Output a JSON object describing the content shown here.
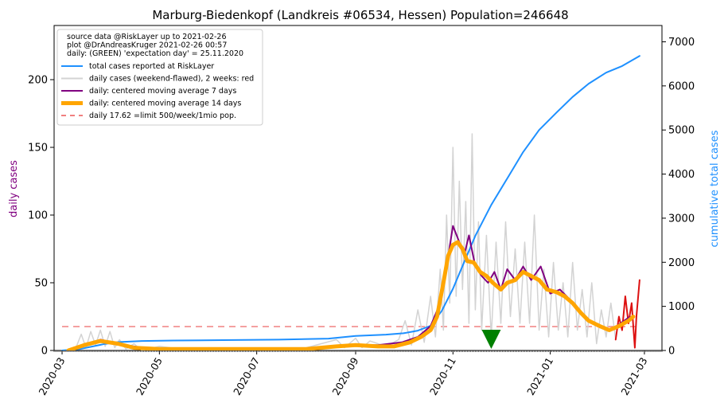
{
  "chart_data": {
    "type": "line",
    "title": "Marburg-Biedenkopf (Landkreis #06534, Hessen) Population=246648",
    "ylabel_left": "daily cases",
    "ylabel_right": "cumulative total cases",
    "ylim_left": [
      0,
      240
    ],
    "ylim_right": [
      0,
      7370
    ],
    "xlim": [
      "2020-02-25",
      "2021-03-12"
    ],
    "yticks_left": [
      0,
      50,
      100,
      150,
      200
    ],
    "yticks_right": [
      0,
      1000,
      2000,
      3000,
      4000,
      5000,
      6000,
      7000
    ],
    "xticks": [
      "2020-03",
      "2020-05",
      "2020-07",
      "2020-09",
      "2020-11",
      "2021-01",
      "2021-03"
    ],
    "colors": {
      "title": "#000000",
      "ylabel_left": "#800080",
      "ylabel_right": "#1e90ff",
      "total": "#1e90ff",
      "daily": "#d3d3d3",
      "daily_recent": "#dd1111",
      "ma7": "#800080",
      "ma14": "#ffa500",
      "limit": "#f08080",
      "expectation_marker": "#008000"
    },
    "legend": {
      "placement": "top-left",
      "header": [
        "source data @RiskLayer up to 2021-02-26",
        "plot @DrAndreasKruger 2021-02-26 00:57",
        "daily: (GREEN) 'expectation day' = 25.11.2020"
      ],
      "entries": [
        {
          "label": "total cases reported at RiskLayer",
          "color": "#1e90ff",
          "style": "solid"
        },
        {
          "label": "daily cases (weekend-flawed), 2 weeks: red",
          "color": "#d3d3d3",
          "style": "solid"
        },
        {
          "label": "daily: centered moving average 7 days",
          "color": "#800080",
          "style": "solid"
        },
        {
          "label": "daily: centered moving average 14 days",
          "color": "#ffa500",
          "style": "thick"
        },
        {
          "label": "daily 17.62 =limit 500/week/1mio pop.",
          "color": "#f08080",
          "style": "dashed"
        }
      ]
    },
    "limit_value": 17.62,
    "expectation_day": "2020-11-25",
    "series": [
      {
        "name": "total cases reported at RiskLayer",
        "axis": "right",
        "points": [
          [
            "2020-03-01",
            0
          ],
          [
            "2020-03-12",
            30
          ],
          [
            "2020-03-20",
            90
          ],
          [
            "2020-03-28",
            150
          ],
          [
            "2020-04-05",
            190
          ],
          [
            "2020-04-20",
            215
          ],
          [
            "2020-05-10",
            225
          ],
          [
            "2020-06-10",
            235
          ],
          [
            "2020-07-15",
            245
          ],
          [
            "2020-08-15",
            270
          ],
          [
            "2020-09-01",
            330
          ],
          [
            "2020-09-20",
            360
          ],
          [
            "2020-10-01",
            390
          ],
          [
            "2020-10-10",
            450
          ],
          [
            "2020-10-18",
            560
          ],
          [
            "2020-10-25",
            900
          ],
          [
            "2020-11-01",
            1400
          ],
          [
            "2020-11-08",
            2000
          ],
          [
            "2020-11-15",
            2600
          ],
          [
            "2020-11-25",
            3300
          ],
          [
            "2020-12-05",
            3900
          ],
          [
            "2020-12-15",
            4500
          ],
          [
            "2020-12-25",
            5000
          ],
          [
            "2021-01-05",
            5400
          ],
          [
            "2021-01-15",
            5750
          ],
          [
            "2021-01-25",
            6050
          ],
          [
            "2021-02-05",
            6300
          ],
          [
            "2021-02-15",
            6450
          ],
          [
            "2021-02-26",
            6680
          ]
        ]
      },
      {
        "name": "daily cases (weekend-flawed), 2 weeks: red",
        "axis": "left",
        "points": [
          [
            "2020-03-05",
            0
          ],
          [
            "2020-03-10",
            3
          ],
          [
            "2020-03-13",
            12
          ],
          [
            "2020-03-16",
            2
          ],
          [
            "2020-03-19",
            14
          ],
          [
            "2020-03-22",
            4
          ],
          [
            "2020-03-25",
            15
          ],
          [
            "2020-03-28",
            3
          ],
          [
            "2020-03-31",
            14
          ],
          [
            "2020-04-03",
            2
          ],
          [
            "2020-04-06",
            8
          ],
          [
            "2020-04-10",
            1
          ],
          [
            "2020-04-15",
            5
          ],
          [
            "2020-04-20",
            0
          ],
          [
            "2020-05-01",
            3
          ],
          [
            "2020-05-15",
            1
          ],
          [
            "2020-06-01",
            2
          ],
          [
            "2020-07-01",
            1
          ],
          [
            "2020-08-01",
            2
          ],
          [
            "2020-08-20",
            8
          ],
          [
            "2020-08-25",
            2
          ],
          [
            "2020-09-01",
            9
          ],
          [
            "2020-09-05",
            2
          ],
          [
            "2020-09-10",
            7
          ],
          [
            "2020-09-20",
            3
          ],
          [
            "2020-09-28",
            8
          ],
          [
            "2020-10-02",
            22
          ],
          [
            "2020-10-06",
            4
          ],
          [
            "2020-10-10",
            30
          ],
          [
            "2020-10-14",
            6
          ],
          [
            "2020-10-18",
            40
          ],
          [
            "2020-10-21",
            10
          ],
          [
            "2020-10-24",
            60
          ],
          [
            "2020-10-26",
            15
          ],
          [
            "2020-10-28",
            100
          ],
          [
            "2020-10-30",
            35
          ],
          [
            "2020-11-01",
            150
          ],
          [
            "2020-11-03",
            40
          ],
          [
            "2020-11-05",
            125
          ],
          [
            "2020-11-07",
            45
          ],
          [
            "2020-11-09",
            110
          ],
          [
            "2020-11-11",
            20
          ],
          [
            "2020-11-13",
            160
          ],
          [
            "2020-11-15",
            30
          ],
          [
            "2020-11-17",
            95
          ],
          [
            "2020-11-19",
            15
          ],
          [
            "2020-11-22",
            85
          ],
          [
            "2020-11-25",
            10
          ],
          [
            "2020-11-28",
            80
          ],
          [
            "2020-12-01",
            20
          ],
          [
            "2020-12-04",
            95
          ],
          [
            "2020-12-07",
            25
          ],
          [
            "2020-12-10",
            75
          ],
          [
            "2020-12-13",
            20
          ],
          [
            "2020-12-16",
            80
          ],
          [
            "2020-12-19",
            20
          ],
          [
            "2020-12-22",
            100
          ],
          [
            "2020-12-25",
            15
          ],
          [
            "2020-12-28",
            60
          ],
          [
            "2020-12-31",
            10
          ],
          [
            "2021-01-03",
            65
          ],
          [
            "2021-01-06",
            15
          ],
          [
            "2021-01-09",
            50
          ],
          [
            "2021-01-12",
            10
          ],
          [
            "2021-01-15",
            65
          ],
          [
            "2021-01-18",
            15
          ],
          [
            "2021-01-21",
            45
          ],
          [
            "2021-01-24",
            10
          ],
          [
            "2021-01-27",
            50
          ],
          [
            "2021-01-30",
            5
          ],
          [
            "2021-02-02",
            30
          ],
          [
            "2021-02-05",
            10
          ],
          [
            "2021-02-08",
            35
          ],
          [
            "2021-02-11",
            8
          ]
        ]
      },
      {
        "name": "daily cases, last 2 weeks",
        "axis": "left",
        "points": [
          [
            "2021-02-11",
            8
          ],
          [
            "2021-02-13",
            25
          ],
          [
            "2021-02-15",
            15
          ],
          [
            "2021-02-17",
            40
          ],
          [
            "2021-02-19",
            20
          ],
          [
            "2021-02-21",
            35
          ],
          [
            "2021-02-23",
            2
          ],
          [
            "2021-02-24",
            25
          ],
          [
            "2021-02-26",
            52
          ]
        ]
      },
      {
        "name": "daily: centered moving average 7 days",
        "axis": "left",
        "points": [
          [
            "2020-03-05",
            0
          ],
          [
            "2020-03-15",
            4
          ],
          [
            "2020-03-25",
            8
          ],
          [
            "2020-04-05",
            5
          ],
          [
            "2020-04-20",
            2
          ],
          [
            "2020-05-15",
            1
          ],
          [
            "2020-07-01",
            1
          ],
          [
            "2020-08-15",
            2
          ],
          [
            "2020-09-01",
            4
          ],
          [
            "2020-09-15",
            4
          ],
          [
            "2020-09-30",
            6
          ],
          [
            "2020-10-10",
            10
          ],
          [
            "2020-10-18",
            18
          ],
          [
            "2020-10-24",
            35
          ],
          [
            "2020-10-28",
            62
          ],
          [
            "2020-11-01",
            92
          ],
          [
            "2020-11-05",
            80
          ],
          [
            "2020-11-08",
            70
          ],
          [
            "2020-11-11",
            85
          ],
          [
            "2020-11-15",
            62
          ],
          [
            "2020-11-19",
            55
          ],
          [
            "2020-11-23",
            50
          ],
          [
            "2020-11-27",
            58
          ],
          [
            "2020-12-01",
            45
          ],
          [
            "2020-12-05",
            60
          ],
          [
            "2020-12-10",
            52
          ],
          [
            "2020-12-15",
            62
          ],
          [
            "2020-12-20",
            52
          ],
          [
            "2020-12-26",
            62
          ],
          [
            "2021-01-01",
            42
          ],
          [
            "2021-01-07",
            45
          ],
          [
            "2021-01-13",
            38
          ],
          [
            "2021-01-19",
            30
          ],
          [
            "2021-01-25",
            22
          ],
          [
            "2021-02-01",
            18
          ],
          [
            "2021-02-08",
            15
          ],
          [
            "2021-02-14",
            20
          ],
          [
            "2021-02-20",
            25
          ]
        ]
      },
      {
        "name": "daily: centered moving average 14 days",
        "axis": "left",
        "points": [
          [
            "2020-03-05",
            0
          ],
          [
            "2020-03-15",
            4
          ],
          [
            "2020-03-25",
            7
          ],
          [
            "2020-04-05",
            5
          ],
          [
            "2020-04-15",
            2
          ],
          [
            "2020-05-01",
            1
          ],
          [
            "2020-06-01",
            1
          ],
          [
            "2020-08-01",
            1
          ],
          [
            "2020-08-20",
            3
          ],
          [
            "2020-09-01",
            4
          ],
          [
            "2020-09-15",
            3
          ],
          [
            "2020-09-25",
            3
          ],
          [
            "2020-10-05",
            6
          ],
          [
            "2020-10-12",
            10
          ],
          [
            "2020-10-18",
            15
          ],
          [
            "2020-10-22",
            25
          ],
          [
            "2020-10-26",
            50
          ],
          [
            "2020-10-29",
            70
          ],
          [
            "2020-11-01",
            78
          ],
          [
            "2020-11-04",
            80
          ],
          [
            "2020-11-07",
            75
          ],
          [
            "2020-11-10",
            66
          ],
          [
            "2020-11-14",
            65
          ],
          [
            "2020-11-18",
            58
          ],
          [
            "2020-11-22",
            55
          ],
          [
            "2020-11-26",
            50
          ],
          [
            "2020-12-01",
            45
          ],
          [
            "2020-12-05",
            50
          ],
          [
            "2020-12-10",
            52
          ],
          [
            "2020-12-15",
            58
          ],
          [
            "2020-12-20",
            55
          ],
          [
            "2020-12-25",
            52
          ],
          [
            "2020-12-30",
            45
          ],
          [
            "2021-01-05",
            43
          ],
          [
            "2021-01-10",
            40
          ],
          [
            "2021-01-15",
            35
          ],
          [
            "2021-01-20",
            28
          ],
          [
            "2021-01-25",
            22
          ],
          [
            "2021-02-01",
            18
          ],
          [
            "2021-02-07",
            15
          ],
          [
            "2021-02-13",
            18
          ],
          [
            "2021-02-19",
            22
          ],
          [
            "2021-02-22",
            25
          ]
        ]
      }
    ]
  }
}
